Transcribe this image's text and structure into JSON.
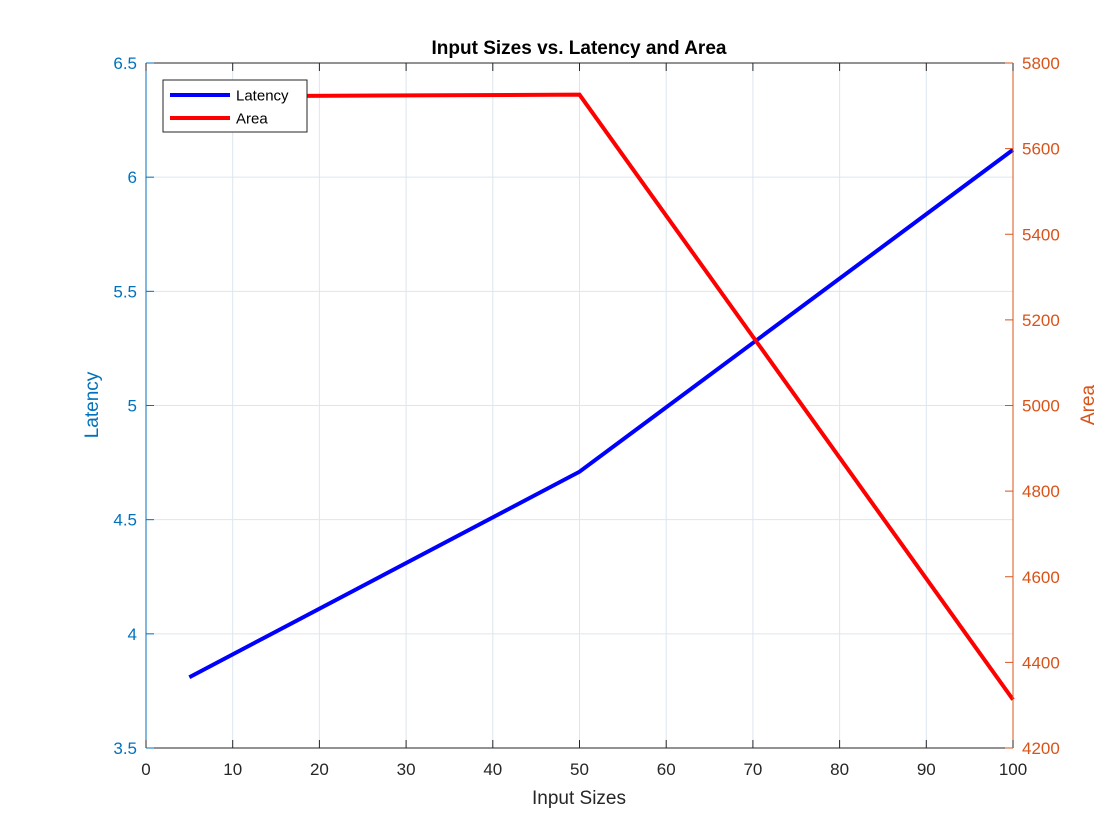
{
  "colors": {
    "left_axis": "#0072BD",
    "right_axis": "#D95319",
    "latency_line": "#0000FF",
    "area_line": "#FF0000",
    "grid": "#DCE6EE"
  },
  "chart_data": {
    "type": "line",
    "title": "Input Sizes vs. Latency and Area",
    "xlabel": "Input Sizes",
    "ylabel_left": "Latency",
    "ylabel_right": "Area",
    "xlim": [
      0,
      100
    ],
    "ylim_left": [
      3.5,
      6.5
    ],
    "ylim_right": [
      4200,
      5800
    ],
    "x_ticks": [
      "0",
      "10",
      "20",
      "30",
      "40",
      "50",
      "60",
      "70",
      "80",
      "90",
      "100"
    ],
    "y_ticks_left": [
      "3.5",
      "4",
      "4.5",
      "5",
      "5.5",
      "6",
      "6.5"
    ],
    "y_ticks_right": [
      "4200",
      "4400",
      "4600",
      "4800",
      "5000",
      "5200",
      "5400",
      "5600",
      "5800"
    ],
    "grid": true,
    "legend_position": "top-left",
    "series": [
      {
        "name": "Latency",
        "axis": "left",
        "color": "#0000FF",
        "x": [
          5,
          50,
          100
        ],
        "y": [
          3.81,
          4.71,
          6.12
        ]
      },
      {
        "name": "Area",
        "axis": "right",
        "color": "#FF0000",
        "x": [
          5,
          50,
          100
        ],
        "y": [
          5722,
          5726,
          4313
        ]
      }
    ]
  }
}
